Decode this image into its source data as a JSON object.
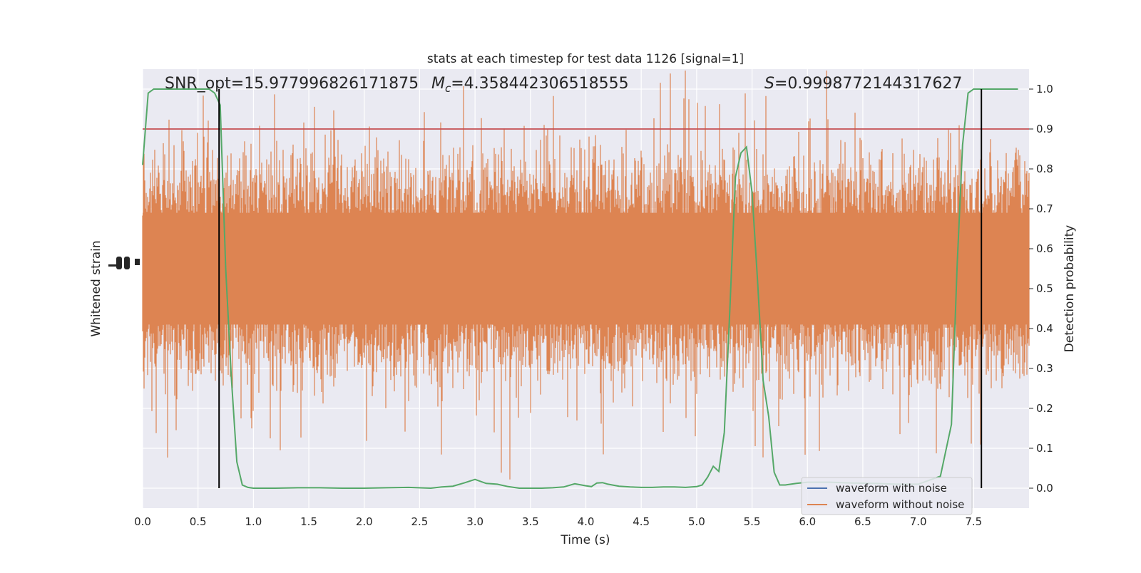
{
  "chart_data": {
    "type": "line",
    "title": "stats at each timestep for test data 1126 [signal=1]",
    "xlabel": "Time (s)",
    "ylabel_left": "Whitened strain",
    "ylabel_right": "Detection probability",
    "xlim": [
      0.0,
      8.0
    ],
    "ylim_right": [
      -0.05,
      1.05
    ],
    "x_ticks": [
      "0.0",
      "0.5",
      "1.0",
      "1.5",
      "2.0",
      "2.5",
      "3.0",
      "3.5",
      "4.0",
      "4.5",
      "5.0",
      "5.5",
      "6.0",
      "6.5",
      "7.0",
      "7.5"
    ],
    "y_ticks_right": [
      "0.0",
      "0.1",
      "0.2",
      "0.3",
      "0.4",
      "0.5",
      "0.6",
      "0.7",
      "0.8",
      "0.9",
      "1.0"
    ],
    "grid": true,
    "annotations": {
      "snr": "SNR_opt=15.977996826171875",
      "mc_symbol": "M",
      "mc_sub": "c",
      "mc_value": "=4.358442306518555",
      "s_symbol": "S",
      "s_value": "=0.9998772144317627"
    },
    "threshold": 0.9,
    "event_markers_x": [
      0.69,
      7.57
    ],
    "detection_probability": {
      "x": [
        0.0,
        0.05,
        0.1,
        0.15,
        0.2,
        0.3,
        0.4,
        0.5,
        0.55,
        0.6,
        0.65,
        0.7,
        0.75,
        0.8,
        0.85,
        0.9,
        0.95,
        1.0,
        1.1,
        1.2,
        1.4,
        1.6,
        1.8,
        2.0,
        2.2,
        2.4,
        2.6,
        2.7,
        2.8,
        2.9,
        3.0,
        3.1,
        3.2,
        3.3,
        3.4,
        3.5,
        3.6,
        3.7,
        3.8,
        3.9,
        4.0,
        4.05,
        4.1,
        4.15,
        4.2,
        4.3,
        4.4,
        4.5,
        4.6,
        4.7,
        4.8,
        4.9,
        5.0,
        5.05,
        5.1,
        5.15,
        5.2,
        5.25,
        5.3,
        5.35,
        5.4,
        5.45,
        5.5,
        5.55,
        5.6,
        5.65,
        5.7,
        5.75,
        5.8,
        5.85,
        5.9,
        6.0,
        6.2,
        6.4,
        6.6,
        6.8,
        7.0,
        7.2,
        7.3,
        7.35,
        7.4,
        7.45,
        7.5,
        7.55,
        7.6,
        7.65,
        7.7,
        7.8,
        7.9
      ],
      "y": [
        0.81,
        0.99,
        1.0,
        1.0,
        1.0,
        1.0,
        1.0,
        1.0,
        1.0,
        1.0,
        0.99,
        0.96,
        0.55,
        0.28,
        0.066,
        0.008,
        0.002,
        0.0,
        0.0,
        0.0,
        0.001,
        0.001,
        0.0,
        0.0,
        0.001,
        0.002,
        0.0,
        0.003,
        0.005,
        0.013,
        0.022,
        0.012,
        0.01,
        0.004,
        0.0,
        0.0,
        0.0,
        0.001,
        0.003,
        0.011,
        0.006,
        0.004,
        0.013,
        0.014,
        0.01,
        0.005,
        0.003,
        0.002,
        0.002,
        0.003,
        0.003,
        0.002,
        0.004,
        0.008,
        0.028,
        0.055,
        0.042,
        0.14,
        0.45,
        0.78,
        0.84,
        0.855,
        0.74,
        0.52,
        0.27,
        0.18,
        0.04,
        0.008,
        0.008,
        0.01,
        0.012,
        0.015,
        0.015,
        0.013,
        0.012,
        0.01,
        0.01,
        0.03,
        0.16,
        0.55,
        0.86,
        0.99,
        1.0,
        1.0,
        1.0,
        1.0,
        1.0,
        1.0,
        1.0
      ]
    },
    "series": [
      {
        "name": "waveform with noise",
        "color": "#4c72b0"
      },
      {
        "name": "waveform without noise",
        "color": "#dd8452"
      }
    ],
    "colors": {
      "probability_line": "#55a868",
      "threshold_line": "#c44e52",
      "event_marker": "#000000",
      "plot_background": "#eaeaf2"
    }
  }
}
